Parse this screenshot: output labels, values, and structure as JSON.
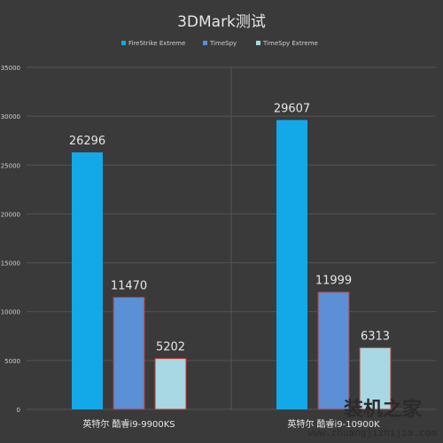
{
  "chart_data": {
    "type": "bar",
    "title": "3DMark测试",
    "categories": [
      "英特尔 酷睿i9-9900KS",
      "英特尔 酷睿i9-10900K"
    ],
    "series": [
      {
        "name": "FireStrike Extreme",
        "values": [
          26296,
          29607
        ],
        "color": "#13a9e8"
      },
      {
        "name": "TimeSpy",
        "values": [
          11470,
          11999
        ],
        "color": "#5b8fd6"
      },
      {
        "name": "TimeSpy Extreme",
        "values": [
          5202,
          6313
        ],
        "color": "#a7d8e3"
      }
    ],
    "ylim": [
      0,
      35000
    ],
    "yticks": [
      0,
      5000,
      10000,
      15000,
      20000,
      25000,
      30000,
      35000
    ],
    "legend_position": "top-center",
    "grid": true
  },
  "watermark": {
    "text": "装机之家",
    "url": "www.zhuangjizhijia.com"
  },
  "colors": {
    "background": "#3a3a3a",
    "grid": "#555555",
    "text": "#e6e6e6",
    "axis_text": "#cfcfcf",
    "bar_outline": "#c0392b"
  }
}
